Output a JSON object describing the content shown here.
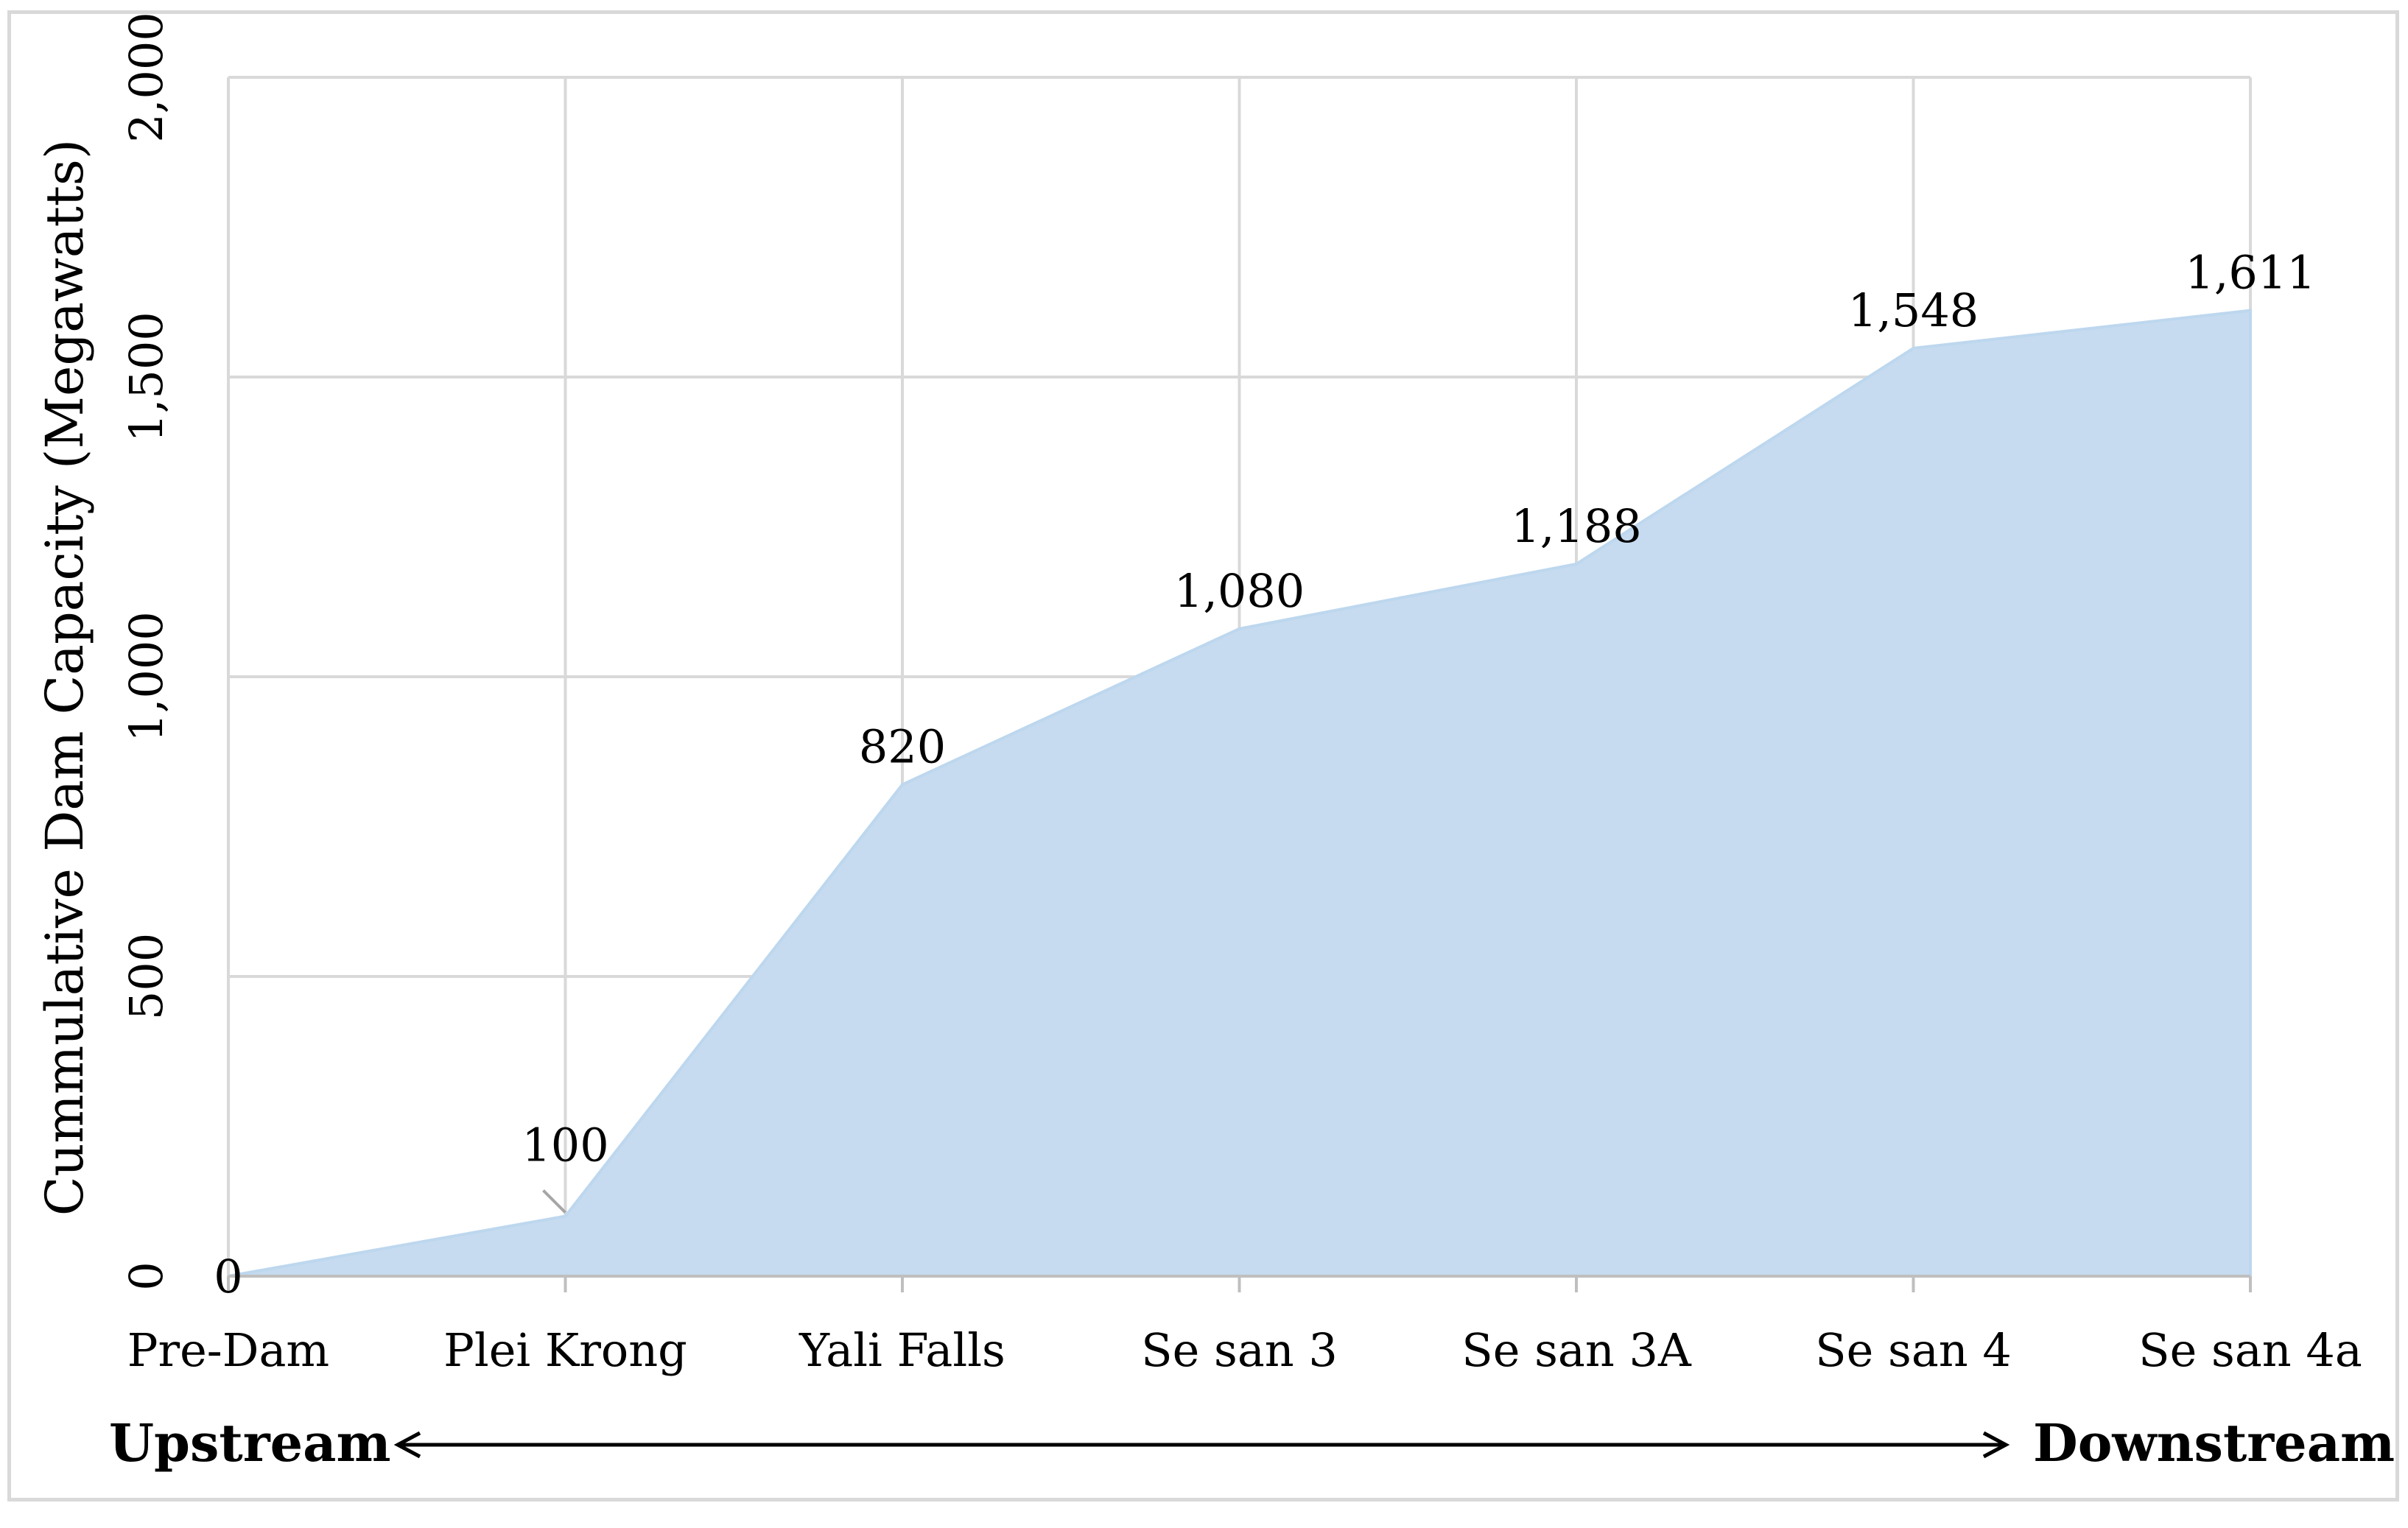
{
  "chart_data": {
    "type": "area",
    "categories": [
      "Pre-Dam",
      "Plei Krong",
      "Yali Falls",
      "Se san 3",
      "Se san 3A",
      "Se san 4",
      "Se san 4a"
    ],
    "values": [
      0,
      100,
      820,
      1080,
      1188,
      1548,
      1611
    ],
    "data_labels": [
      "0",
      "100",
      "820",
      "1,080",
      "1,188",
      "1,548",
      "1,611"
    ],
    "ylabel": "Cummulative  Dam Capacity  (Megawatts)",
    "xlabel": "",
    "ylim": [
      0,
      2000
    ],
    "yticks": [
      0,
      500,
      1000,
      1500,
      2000
    ],
    "ytick_labels": [
      "0",
      "500",
      "1,000",
      "1,500",
      "2,000"
    ],
    "grid": true,
    "colors": {
      "area": "#c6dbef",
      "grid": "#d9d9d9"
    }
  },
  "direction": {
    "left_label": "Upstream",
    "right_label": "Downstream"
  }
}
